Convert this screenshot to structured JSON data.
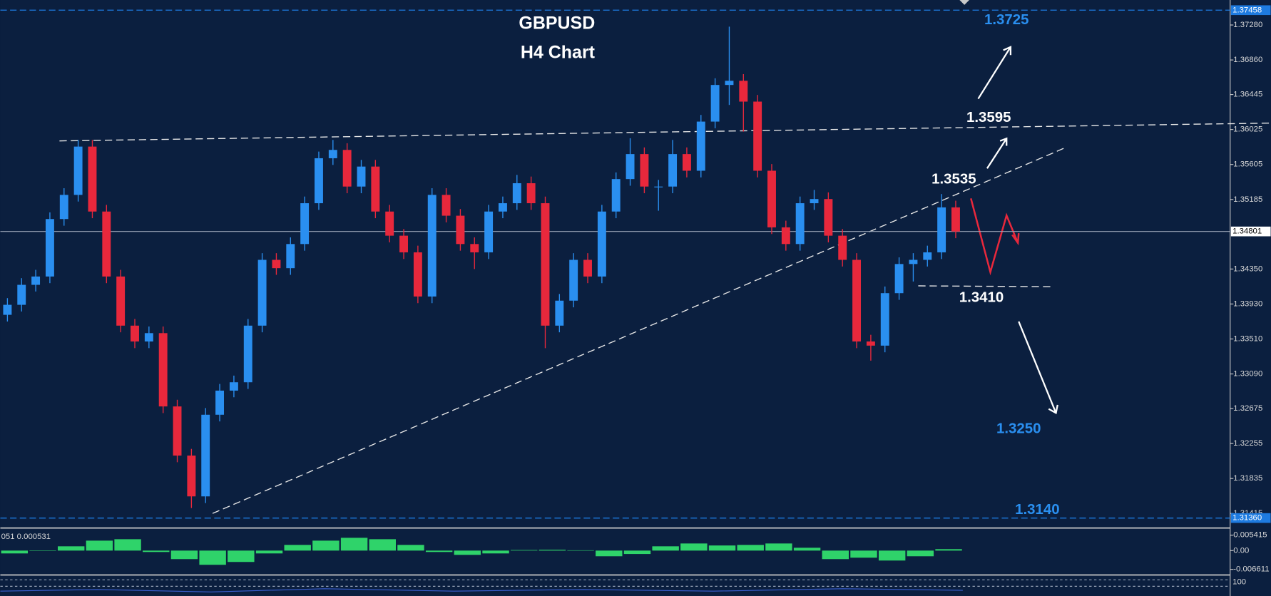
{
  "chart_data": {
    "type": "candlestick",
    "title": "GBPUSD",
    "subtitle": "H4 Chart",
    "up_color": "#2a8ff0",
    "down_color": "#e8283c",
    "open": [
      1.338,
      1.3392,
      1.3416,
      1.3426,
      1.3495,
      1.3524,
      1.3582,
      1.3504,
      1.3426,
      1.3367,
      1.3348,
      1.3358,
      1.327,
      1.3211,
      1.3162,
      1.326,
      1.3289,
      1.3299,
      1.3367,
      1.3446,
      1.3436,
      1.3465,
      1.3514,
      1.3568,
      1.3578,
      1.3534,
      1.3558,
      1.3504,
      1.3475,
      1.3455,
      1.3402,
      1.3524,
      1.3499,
      1.3465,
      1.3455,
      1.3504,
      1.3514,
      1.3538,
      1.3514,
      1.3367,
      1.3397,
      1.3446,
      1.3426,
      1.3504,
      1.3543,
      1.3573,
      1.3534,
      1.3534,
      1.3573,
      1.3553,
      1.3612,
      1.3656,
      1.3661,
      1.3636,
      1.3553,
      1.3485,
      1.3465,
      1.3514,
      1.3519,
      1.3475,
      1.3446,
      1.3348,
      1.3343,
      1.3406,
      1.3441,
      1.3446,
      1.3455,
      1.3509
    ],
    "high": [
      1.34,
      1.3424,
      1.3434,
      1.3503,
      1.3532,
      1.359,
      1.359,
      1.3512,
      1.3434,
      1.3375,
      1.3366,
      1.3366,
      1.3278,
      1.3219,
      1.3268,
      1.3297,
      1.3307,
      1.3375,
      1.3454,
      1.3454,
      1.3473,
      1.3522,
      1.3576,
      1.359,
      1.3586,
      1.3566,
      1.3566,
      1.3512,
      1.3483,
      1.3463,
      1.3532,
      1.3532,
      1.3507,
      1.3473,
      1.3512,
      1.3522,
      1.3548,
      1.3546,
      1.3522,
      1.3405,
      1.3454,
      1.3454,
      1.3512,
      1.3551,
      1.3592,
      1.3581,
      1.3542,
      1.359,
      1.3581,
      1.362,
      1.3664,
      1.3726,
      1.3669,
      1.3644,
      1.3561,
      1.3493,
      1.3522,
      1.353,
      1.3527,
      1.3483,
      1.3454,
      1.3356,
      1.3414,
      1.3449,
      1.3454,
      1.3463,
      1.3525,
      1.3517
    ],
    "low": [
      1.3372,
      1.3384,
      1.3408,
      1.3418,
      1.3487,
      1.3516,
      1.3496,
      1.3418,
      1.3359,
      1.334,
      1.334,
      1.3262,
      1.3203,
      1.3148,
      1.3154,
      1.3252,
      1.3281,
      1.3291,
      1.3359,
      1.3428,
      1.3428,
      1.3457,
      1.3506,
      1.356,
      1.3526,
      1.3526,
      1.3496,
      1.3467,
      1.3447,
      1.3394,
      1.3394,
      1.3491,
      1.3457,
      1.3435,
      1.3447,
      1.3496,
      1.3506,
      1.3506,
      1.334,
      1.3359,
      1.3389,
      1.3418,
      1.3418,
      1.3496,
      1.3535,
      1.3526,
      1.3505,
      1.3526,
      1.3545,
      1.3545,
      1.3604,
      1.3632,
      1.36,
      1.3545,
      1.3477,
      1.3457,
      1.3457,
      1.3506,
      1.3467,
      1.3438,
      1.334,
      1.3325,
      1.3335,
      1.3398,
      1.342,
      1.3438,
      1.3447,
      1.3472
    ],
    "close": [
      1.3392,
      1.3416,
      1.3426,
      1.3495,
      1.3524,
      1.3582,
      1.3504,
      1.3426,
      1.3367,
      1.3348,
      1.3358,
      1.327,
      1.3211,
      1.3162,
      1.326,
      1.3289,
      1.3299,
      1.3367,
      1.3446,
      1.3436,
      1.3465,
      1.3514,
      1.3568,
      1.3578,
      1.3534,
      1.3558,
      1.3504,
      1.3475,
      1.3455,
      1.3402,
      1.3524,
      1.3499,
      1.3465,
      1.3455,
      1.3504,
      1.3514,
      1.3538,
      1.3514,
      1.3367,
      1.3397,
      1.3446,
      1.3426,
      1.3504,
      1.3543,
      1.3573,
      1.3534,
      1.3534,
      1.3573,
      1.3553,
      1.3612,
      1.3656,
      1.3661,
      1.3636,
      1.3553,
      1.3485,
      1.3465,
      1.3514,
      1.3519,
      1.3475,
      1.3446,
      1.3348,
      1.3343,
      1.3406,
      1.3441,
      1.3446,
      1.3455,
      1.3509,
      1.348
    ],
    "ylim": [
      1.3126,
      1.3758
    ],
    "yticks": [
      {
        "value": 1.3728,
        "label": "1.37280"
      },
      {
        "value": 1.3686,
        "label": "1.36860"
      },
      {
        "value": 1.36445,
        "label": "1.36445"
      },
      {
        "value": 1.36025,
        "label": "1.36025"
      },
      {
        "value": 1.35605,
        "label": "1.35605"
      },
      {
        "value": 1.35185,
        "label": "1.35185"
      },
      {
        "value": 1.3435,
        "label": "1.34350"
      },
      {
        "value": 1.3393,
        "label": "1.33930"
      },
      {
        "value": 1.3351,
        "label": "1.33510"
      },
      {
        "value": 1.3309,
        "label": "1.33090"
      },
      {
        "value": 1.32675,
        "label": "1.32675"
      },
      {
        "value": 1.32255,
        "label": "1.32255"
      },
      {
        "value": 1.31835,
        "label": "1.31835"
      },
      {
        "value": 1.31415,
        "label": "1.31415"
      }
    ],
    "levels": [
      {
        "value": 1.37458,
        "label": "1.37458",
        "color": "#1e7be0"
      },
      {
        "value": 1.3136,
        "label": "1.31360",
        "color": "#1e7be0"
      }
    ],
    "current_price": {
      "value": 1.34801,
      "label": "1.34801",
      "color": "#9aa6b8"
    },
    "annotations": [
      "1.3725",
      "1.3595",
      "1.3535",
      "1.3410",
      "1.3250",
      "1.3140"
    ],
    "indicator": {
      "type": "bar",
      "label": "051 0.000531",
      "color": "#2fd36a",
      "values": [
        -0.001,
        0,
        0.0015,
        0.0035,
        0.004,
        -0.0005,
        -0.003,
        -0.005,
        -0.004,
        -0.001,
        0.002,
        0.0035,
        0.0045,
        0.004,
        0.002,
        -0.0005,
        -0.0015,
        -0.001,
        0.0002,
        0.0003,
        0.0001,
        -0.002,
        -0.0012,
        0.0015,
        0.0025,
        0.0018,
        0.002,
        0.0025,
        0.001,
        -0.003,
        -0.0025,
        -0.0035,
        -0.002,
        0.0005
      ],
      "ylim": [
        -0.008,
        0.0071
      ],
      "yticks": [
        0.005415,
        {
          "value": 0,
          "label": "0.00"
        },
        -0.006611
      ]
    },
    "bottom_panel_label": "100"
  }
}
